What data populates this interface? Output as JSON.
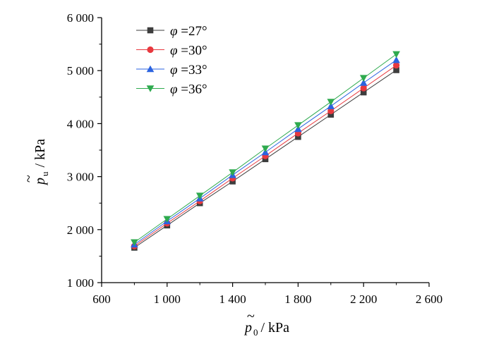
{
  "chart_data": {
    "type": "line",
    "xlabel": {
      "symbol": "p",
      "sub": "0",
      "unit": "/ kPa"
    },
    "ylabel": {
      "symbol": "p",
      "sub": "u",
      "unit": "/ kPa"
    },
    "xlim": [
      600,
      2600
    ],
    "ylim": [
      1000,
      6000
    ],
    "xticks": [
      600,
      1000,
      1400,
      1800,
      2200,
      2600
    ],
    "xtick_labels": [
      "600",
      "1 000",
      "1 400",
      "1 800",
      "2 200",
      "2 600"
    ],
    "yticks": [
      1000,
      2000,
      3000,
      4000,
      5000,
      6000
    ],
    "ytick_labels": [
      "1 000",
      "2 000",
      "3 000",
      "4 000",
      "5 000",
      "6 000"
    ],
    "x": [
      800,
      1000,
      1200,
      1400,
      1600,
      1800,
      2000,
      2200,
      2400
    ],
    "legend_position": "top-left",
    "series": [
      {
        "name": "φ =27°",
        "label_symbol": "φ",
        "label_value": "=27°",
        "marker": "square",
        "color": "#3d3d3d",
        "values": [
          1660,
          2080,
          2500,
          2910,
          3330,
          3750,
          4170,
          4590,
          5010
        ]
      },
      {
        "name": "φ =30°",
        "label_symbol": "φ",
        "label_value": "=30°",
        "marker": "circle",
        "color": "#e8393f",
        "values": [
          1690,
          2120,
          2540,
          2970,
          3390,
          3820,
          4240,
          4670,
          5100
        ]
      },
      {
        "name": "φ =33°",
        "label_symbol": "φ",
        "label_value": "=33°",
        "marker": "triangle-up",
        "color": "#2b63e0",
        "values": [
          1720,
          2160,
          2590,
          3030,
          3460,
          3900,
          4330,
          4770,
          5200
        ]
      },
      {
        "name": "φ =36°",
        "label_symbol": "φ",
        "label_value": "=36°",
        "marker": "triangle-down",
        "color": "#2eaa4e",
        "values": [
          1760,
          2200,
          2640,
          3080,
          3530,
          3970,
          4410,
          4860,
          5310
        ]
      }
    ]
  }
}
